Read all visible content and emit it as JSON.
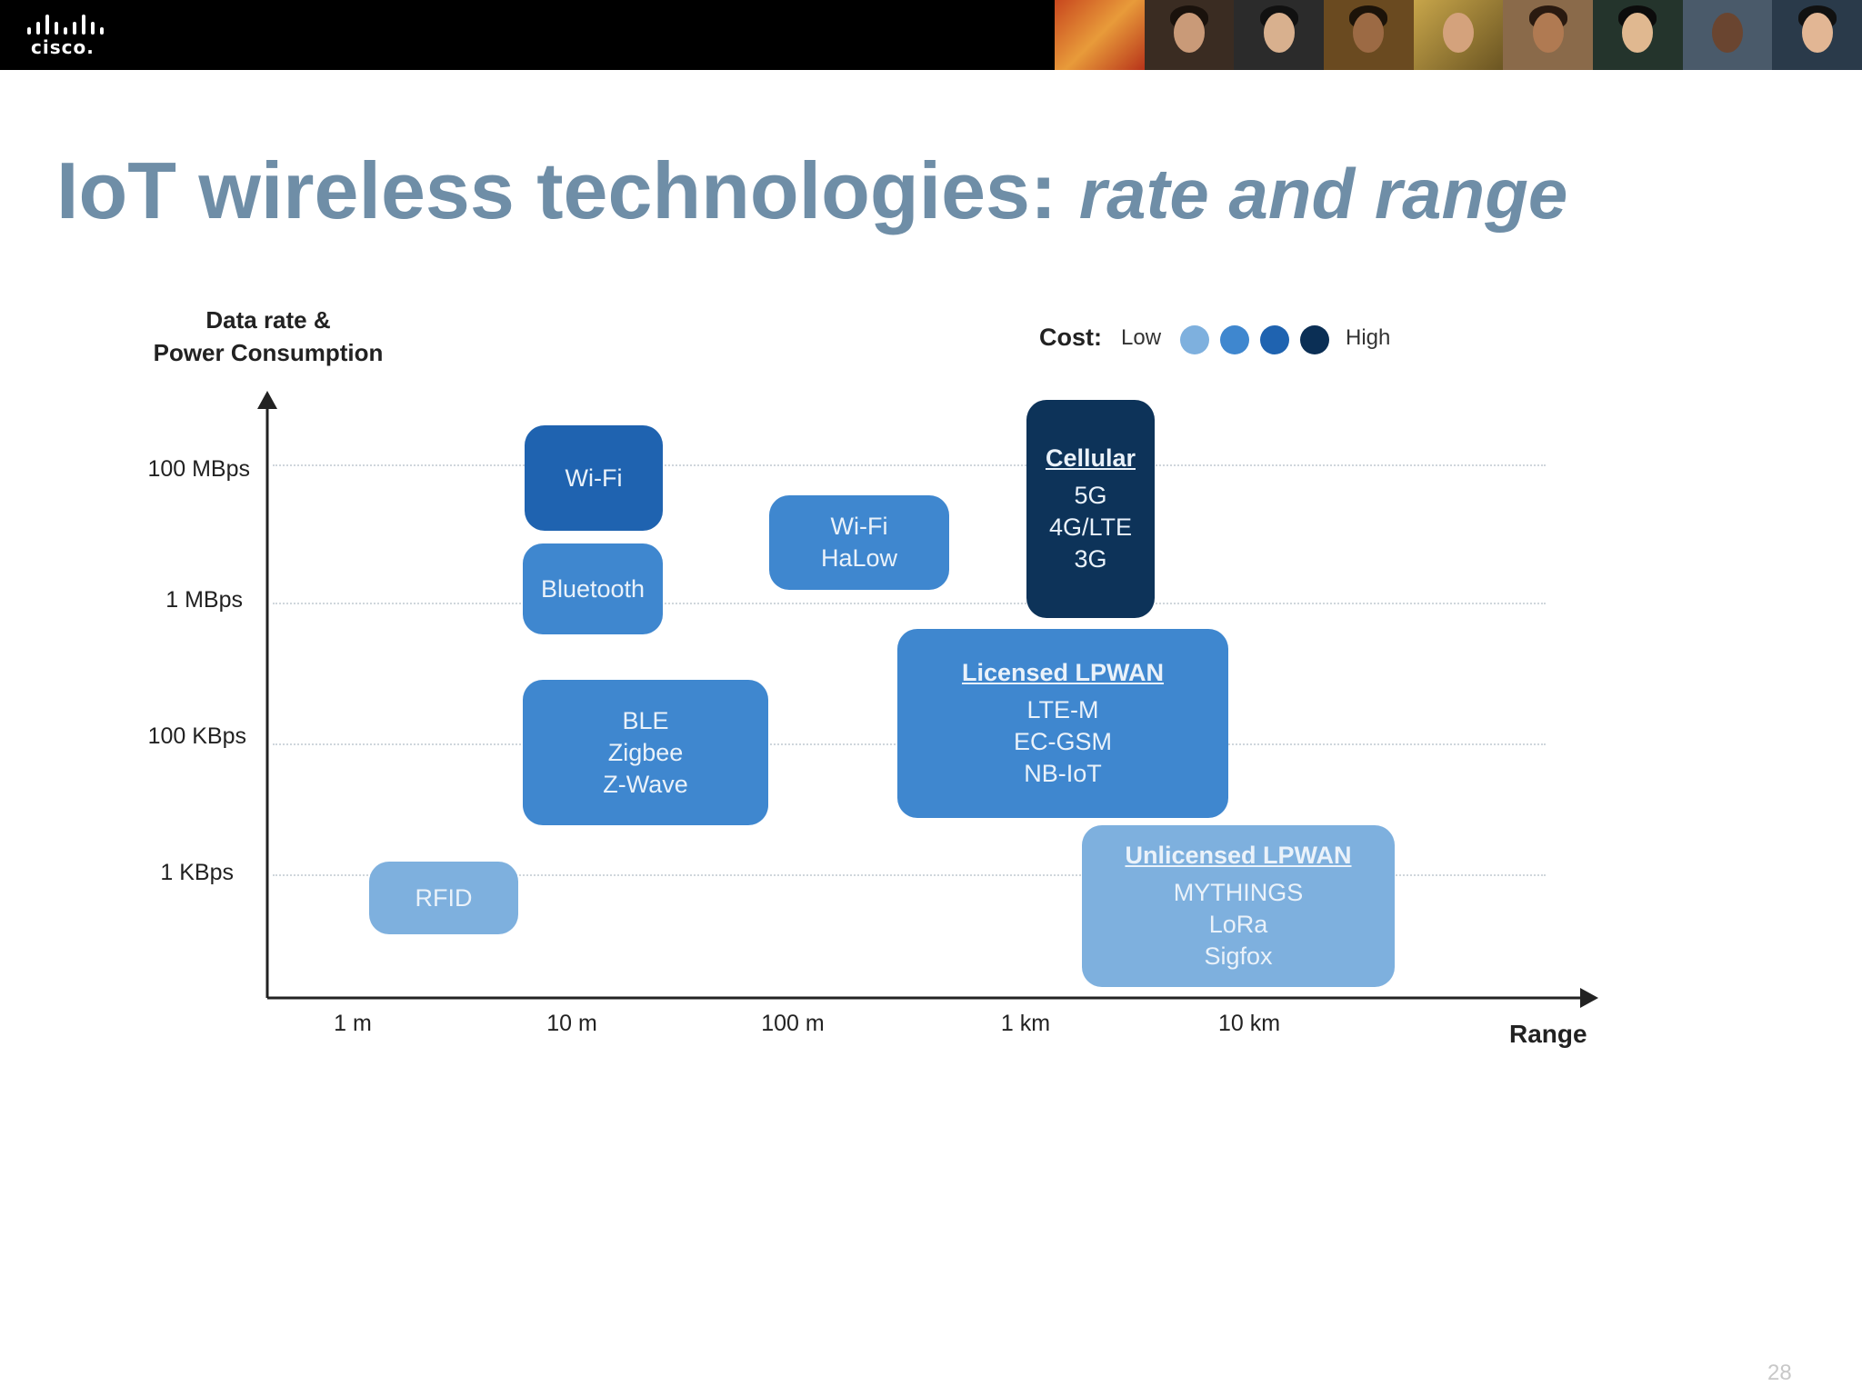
{
  "brand": {
    "logo_text": "cisco."
  },
  "title": {
    "main": "IoT wireless technologies: ",
    "sub": "rate and range"
  },
  "chart": {
    "y_axis_title": [
      "Data rate &",
      "Power Consumption"
    ],
    "x_axis_title": "Range",
    "y_ticks": [
      "100 MBps",
      "1 MBps",
      "100 KBps",
      "1 KBps"
    ],
    "x_ticks": [
      "1 m",
      "10 m",
      "100 m",
      "1 km",
      "10 km"
    ],
    "legend": {
      "label": "Cost:",
      "low": "Low",
      "high": "High",
      "colors": [
        "#7eb0de",
        "#3f87cf",
        "#1f63b0",
        "#0b2f55"
      ]
    },
    "boxes": [
      {
        "id": "wifi",
        "title": "",
        "items": [
          "Wi-Fi"
        ],
        "color": "#1f63b0"
      },
      {
        "id": "bluetooth",
        "title": "",
        "items": [
          "Bluetooth"
        ],
        "color": "#3f87cf"
      },
      {
        "id": "wifi-halow",
        "title": "",
        "items": [
          "Wi-Fi",
          "HaLow"
        ],
        "color": "#3f87cf"
      },
      {
        "id": "cellular",
        "title": "Cellular",
        "items": [
          "5G",
          "4G/LTE",
          "3G"
        ],
        "color": "#0d3359"
      },
      {
        "id": "licensed-lpwan",
        "title": "Licensed LPWAN",
        "items": [
          "LTE-M",
          "EC-GSM",
          "NB-IoT"
        ],
        "color": "#3f87cf"
      },
      {
        "id": "ble",
        "title": "",
        "items": [
          "BLE",
          "Zigbee",
          "Z-Wave"
        ],
        "color": "#3f87cf"
      },
      {
        "id": "rfid",
        "title": "",
        "items": [
          "RFID"
        ],
        "color": "#7eb0de"
      },
      {
        "id": "unlicensed-lpwan",
        "title": "Unlicensed LPWAN",
        "items": [
          "MYTHINGS",
          "LoRa",
          "Sigfox"
        ],
        "color": "#7eb0de"
      }
    ]
  },
  "page_number": "28"
}
